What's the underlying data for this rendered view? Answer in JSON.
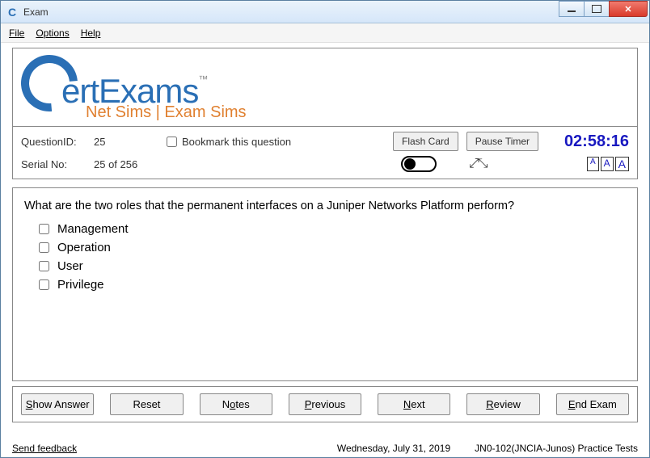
{
  "window": {
    "title": "Exam",
    "icon_letter": "C"
  },
  "menu": {
    "file": "File",
    "options": "Options",
    "help": "Help"
  },
  "logo": {
    "text": "ertExams",
    "tm": "™",
    "tagline": "Net Sims | Exam Sims"
  },
  "info": {
    "qid_label": "QuestionID:",
    "qid_value": "25",
    "serial_label": "Serial No:",
    "serial_value": "25 of 256",
    "bookmark_label": "Bookmark this question",
    "flash_card": "Flash Card",
    "pause_timer": "Pause Timer",
    "timer": "02:58:16",
    "font_a": "A"
  },
  "question": {
    "text": "What are the two roles that the permanent interfaces on a Juniper Networks Platform perform?",
    "options": [
      "Management",
      "Operation",
      "User",
      "Privilege"
    ]
  },
  "buttons": {
    "show_answer": "Show Answer",
    "reset": "Reset",
    "notes": "Notes",
    "previous": "Previous",
    "next": "Next",
    "review": "Review",
    "end_exam": "End Exam"
  },
  "status": {
    "feedback": "Send feedback",
    "date": "Wednesday, July 31, 2019",
    "exam": "JN0-102(JNCIA-Junos) Practice Tests"
  },
  "colors": {
    "brand_blue": "#2a6fb5",
    "brand_orange": "#e08030",
    "timer_blue": "#1818c0"
  }
}
